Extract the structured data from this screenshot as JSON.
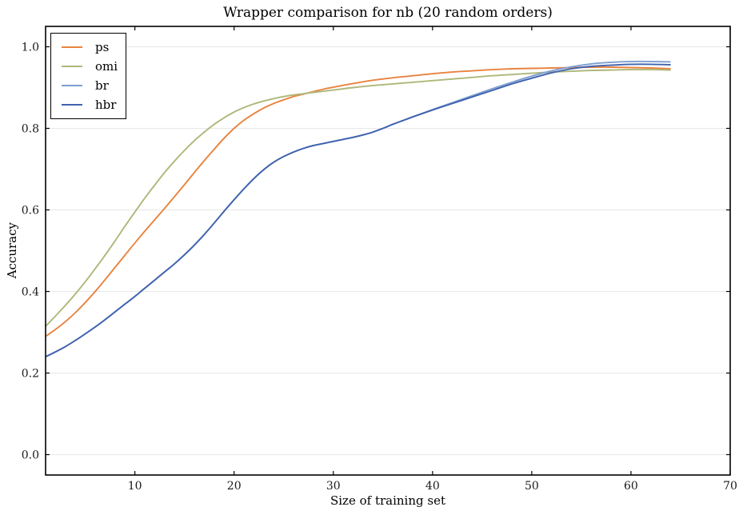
{
  "figure": {
    "title": "Wrapper comparison for nb (20 random orders)",
    "xlabel": "Size of training set",
    "ylabel": "Accuracy"
  },
  "chart_data": {
    "type": "line",
    "title": "Wrapper comparison for nb (20 random orders)",
    "xlabel": "Size of training set",
    "ylabel": "Accuracy",
    "xlim": [
      1,
      70
    ],
    "ylim": [
      -0.05,
      1.05
    ],
    "xtick_values": [
      10,
      20,
      30,
      40,
      50,
      60,
      70
    ],
    "xtick_labels": [
      "10",
      "20",
      "30",
      "40",
      "50",
      "60",
      "70"
    ],
    "ytick_values": [
      0.0,
      0.2,
      0.4,
      0.6,
      0.8,
      1.0
    ],
    "ytick_labels": [
      "0.0",
      "0.2",
      "0.4",
      "0.6",
      "0.8",
      "1.0"
    ],
    "grid": "horizontal",
    "grid_color": "#e7e7e7",
    "frame_color": "#000000",
    "background": "#ffffff",
    "legend_position": "upper-left",
    "series": [
      {
        "name": "ps",
        "color": "#e8833f",
        "points": [
          [
            1,
            0.29
          ],
          [
            2,
            0.307
          ],
          [
            3,
            0.326
          ],
          [
            4,
            0.348
          ],
          [
            5,
            0.373
          ],
          [
            6,
            0.4
          ],
          [
            7,
            0.429
          ],
          [
            8,
            0.459
          ],
          [
            9,
            0.489
          ],
          [
            10,
            0.519
          ],
          [
            11,
            0.548
          ],
          [
            12,
            0.576
          ],
          [
            13,
            0.604
          ],
          [
            14,
            0.633
          ],
          [
            15,
            0.662
          ],
          [
            16,
            0.692
          ],
          [
            17,
            0.721
          ],
          [
            18,
            0.749
          ],
          [
            19,
            0.776
          ],
          [
            20,
            0.8
          ],
          [
            21,
            0.82
          ],
          [
            22,
            0.836
          ],
          [
            23,
            0.85
          ],
          [
            24,
            0.861
          ],
          [
            25,
            0.87
          ],
          [
            26,
            0.878
          ],
          [
            27,
            0.884
          ],
          [
            28,
            0.89
          ],
          [
            29,
            0.896
          ],
          [
            30,
            0.901
          ],
          [
            32,
            0.91
          ],
          [
            34,
            0.918
          ],
          [
            36,
            0.924
          ],
          [
            38,
            0.929
          ],
          [
            40,
            0.934
          ],
          [
            42,
            0.938
          ],
          [
            44,
            0.941
          ],
          [
            46,
            0.944
          ],
          [
            48,
            0.946
          ],
          [
            50,
            0.947
          ],
          [
            52,
            0.948
          ],
          [
            54,
            0.949
          ],
          [
            56,
            0.95
          ],
          [
            58,
            0.95
          ],
          [
            60,
            0.949
          ],
          [
            62,
            0.948
          ],
          [
            64,
            0.946
          ]
        ]
      },
      {
        "name": "omi",
        "color": "#adb879",
        "points": [
          [
            1,
            0.315
          ],
          [
            2,
            0.34
          ],
          [
            3,
            0.366
          ],
          [
            4,
            0.394
          ],
          [
            5,
            0.424
          ],
          [
            6,
            0.456
          ],
          [
            7,
            0.489
          ],
          [
            8,
            0.524
          ],
          [
            9,
            0.56
          ],
          [
            10,
            0.595
          ],
          [
            11,
            0.629
          ],
          [
            12,
            0.661
          ],
          [
            13,
            0.692
          ],
          [
            14,
            0.72
          ],
          [
            15,
            0.746
          ],
          [
            16,
            0.77
          ],
          [
            17,
            0.791
          ],
          [
            18,
            0.81
          ],
          [
            19,
            0.826
          ],
          [
            20,
            0.84
          ],
          [
            21,
            0.851
          ],
          [
            22,
            0.86
          ],
          [
            23,
            0.867
          ],
          [
            24,
            0.873
          ],
          [
            25,
            0.878
          ],
          [
            26,
            0.882
          ],
          [
            27,
            0.885
          ],
          [
            28,
            0.888
          ],
          [
            29,
            0.891
          ],
          [
            30,
            0.894
          ],
          [
            32,
            0.9
          ],
          [
            34,
            0.905
          ],
          [
            36,
            0.909
          ],
          [
            38,
            0.913
          ],
          [
            40,
            0.917
          ],
          [
            42,
            0.921
          ],
          [
            44,
            0.925
          ],
          [
            46,
            0.929
          ],
          [
            48,
            0.932
          ],
          [
            50,
            0.935
          ],
          [
            52,
            0.938
          ],
          [
            54,
            0.94
          ],
          [
            56,
            0.942
          ],
          [
            58,
            0.943
          ],
          [
            60,
            0.944
          ],
          [
            62,
            0.944
          ],
          [
            64,
            0.943
          ]
        ]
      },
      {
        "name": "br",
        "color": "#7e9ed2",
        "points": [
          [
            1,
            0.24
          ],
          [
            2,
            0.252
          ],
          [
            3,
            0.265
          ],
          [
            4,
            0.28
          ],
          [
            5,
            0.296
          ],
          [
            6,
            0.313
          ],
          [
            7,
            0.331
          ],
          [
            8,
            0.35
          ],
          [
            9,
            0.369
          ],
          [
            10,
            0.388
          ],
          [
            11,
            0.408
          ],
          [
            12,
            0.428
          ],
          [
            13,
            0.448
          ],
          [
            14,
            0.468
          ],
          [
            15,
            0.49
          ],
          [
            16,
            0.514
          ],
          [
            17,
            0.54
          ],
          [
            18,
            0.568
          ],
          [
            19,
            0.597
          ],
          [
            20,
            0.625
          ],
          [
            21,
            0.652
          ],
          [
            22,
            0.677
          ],
          [
            23,
            0.699
          ],
          [
            24,
            0.717
          ],
          [
            25,
            0.731
          ],
          [
            26,
            0.742
          ],
          [
            27,
            0.751
          ],
          [
            28,
            0.758
          ],
          [
            29,
            0.763
          ],
          [
            30,
            0.768
          ],
          [
            31,
            0.773
          ],
          [
            32,
            0.778
          ],
          [
            33,
            0.784
          ],
          [
            34,
            0.791
          ],
          [
            35,
            0.8
          ],
          [
            36,
            0.81
          ],
          [
            37,
            0.819
          ],
          [
            38,
            0.828
          ],
          [
            40,
            0.846
          ],
          [
            42,
            0.863
          ],
          [
            44,
            0.88
          ],
          [
            46,
            0.897
          ],
          [
            48,
            0.913
          ],
          [
            50,
            0.928
          ],
          [
            52,
            0.941
          ],
          [
            54,
            0.951
          ],
          [
            56,
            0.958
          ],
          [
            58,
            0.962
          ],
          [
            60,
            0.964
          ],
          [
            62,
            0.964
          ],
          [
            64,
            0.963
          ]
        ]
      },
      {
        "name": "hbr",
        "color": "#4062ae",
        "points": [
          [
            1,
            0.24
          ],
          [
            2,
            0.252
          ],
          [
            3,
            0.265
          ],
          [
            4,
            0.28
          ],
          [
            5,
            0.296
          ],
          [
            6,
            0.313
          ],
          [
            7,
            0.331
          ],
          [
            8,
            0.35
          ],
          [
            9,
            0.369
          ],
          [
            10,
            0.388
          ],
          [
            11,
            0.408
          ],
          [
            12,
            0.428
          ],
          [
            13,
            0.448
          ],
          [
            14,
            0.468
          ],
          [
            15,
            0.49
          ],
          [
            16,
            0.514
          ],
          [
            17,
            0.54
          ],
          [
            18,
            0.568
          ],
          [
            19,
            0.597
          ],
          [
            20,
            0.625
          ],
          [
            21,
            0.652
          ],
          [
            22,
            0.677
          ],
          [
            23,
            0.699
          ],
          [
            24,
            0.717
          ],
          [
            25,
            0.731
          ],
          [
            26,
            0.742
          ],
          [
            27,
            0.751
          ],
          [
            28,
            0.758
          ],
          [
            29,
            0.763
          ],
          [
            30,
            0.768
          ],
          [
            31,
            0.773
          ],
          [
            32,
            0.778
          ],
          [
            33,
            0.784
          ],
          [
            34,
            0.791
          ],
          [
            35,
            0.8
          ],
          [
            36,
            0.81
          ],
          [
            37,
            0.819
          ],
          [
            38,
            0.828
          ],
          [
            40,
            0.845
          ],
          [
            42,
            0.861
          ],
          [
            44,
            0.877
          ],
          [
            46,
            0.893
          ],
          [
            48,
            0.909
          ],
          [
            50,
            0.923
          ],
          [
            52,
            0.936
          ],
          [
            54,
            0.946
          ],
          [
            56,
            0.952
          ],
          [
            58,
            0.955
          ],
          [
            60,
            0.957
          ],
          [
            62,
            0.957
          ],
          [
            64,
            0.956
          ]
        ]
      }
    ]
  }
}
